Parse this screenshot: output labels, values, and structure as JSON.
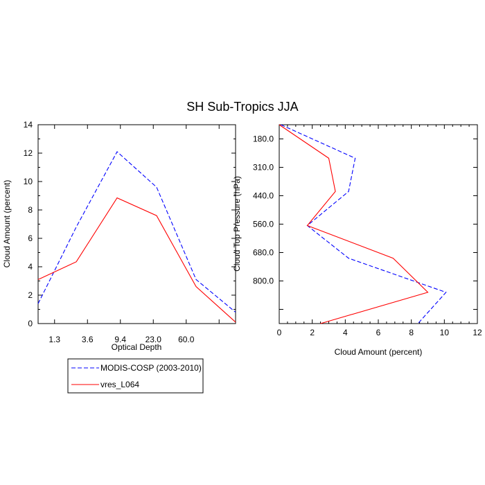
{
  "title": "SH Sub-Tropics JJA",
  "colors": {
    "reference": "#0000ff",
    "model": "#ff0000",
    "axis": "#000000"
  },
  "legend": {
    "entries": [
      {
        "label": "MODIS-COSP (2003-2010)",
        "color": "#0000ff",
        "dash": "dashed"
      },
      {
        "label": "vres_L064",
        "color": "#ff0000",
        "dash": "solid"
      }
    ]
  },
  "chart_data": [
    {
      "type": "line",
      "title": "",
      "xlabel": "Optical Depth",
      "ylabel": "Cloud Amount (percent)",
      "x": [
        0,
        1,
        2,
        3,
        4,
        5,
        6
      ],
      "xlim": [
        0,
        6
      ],
      "xticks": [
        0.5,
        1.5,
        2.5,
        3.5,
        4.5,
        5.5
      ],
      "xtick_labels": [
        "1.3",
        "3.6",
        "9.4",
        "23.0",
        "60.0"
      ],
      "xtick_label_positions": [
        0.5,
        1.5,
        2.5,
        3.5,
        4.5
      ],
      "ylim": [
        0,
        14
      ],
      "yticks": [
        0,
        2,
        4,
        6,
        8,
        10,
        12,
        14
      ],
      "ytick_labels": [
        "0",
        "2",
        "4",
        "6",
        "8",
        "10",
        "12",
        "14"
      ],
      "grid": false,
      "series": [
        {
          "name": "MODIS-COSP (2003-2010)",
          "values": [
            1.4,
            6.8,
            12.1,
            9.6,
            3.1,
            0.8
          ],
          "x": [
            0,
            1.16,
            2.4,
            3.6,
            4.8,
            6.0
          ]
        },
        {
          "name": "vres_L064",
          "values": [
            3.1,
            4.35,
            8.85,
            7.6,
            2.6,
            0.1
          ],
          "x": [
            0,
            1.16,
            2.4,
            3.6,
            4.8,
            6.0
          ]
        }
      ]
    },
    {
      "type": "line",
      "title": "",
      "xlabel": "Cloud Amount (percent)",
      "ylabel": "Cloud Top Pressure (hPa)",
      "xlim": [
        0,
        12
      ],
      "xticks": [
        0,
        2,
        4,
        6,
        8,
        10,
        12
      ],
      "xtick_labels": [
        "0",
        "2",
        "4",
        "6",
        "8",
        "10",
        "12"
      ],
      "ylim": [
        0,
        7
      ],
      "y_orientation": "downward",
      "yticks": [
        0.5,
        1.5,
        2.5,
        3.5,
        4.5,
        5.5,
        6.5
      ],
      "ytick_labels": [
        "180.0",
        "310.0",
        "440.0",
        "560.0",
        "680.0",
        "800.0"
      ],
      "ytick_label_positions": [
        0.5,
        1.5,
        2.5,
        3.5,
        4.5,
        5.5
      ],
      "grid": false,
      "series": [
        {
          "name": "MODIS-COSP (2003-2010)",
          "values": [
            0.0,
            1.18,
            2.35,
            3.55,
            4.7,
            5.9,
            7.0
          ],
          "x": [
            0.1,
            4.6,
            4.2,
            1.7,
            4.2,
            10.1,
            8.4
          ]
        },
        {
          "name": "vres_L064",
          "values": [
            0.0,
            1.18,
            2.35,
            3.55,
            4.7,
            5.9,
            7.0
          ],
          "x": [
            0.0,
            3.0,
            3.4,
            1.7,
            6.9,
            9.0,
            2.5
          ]
        }
      ]
    }
  ]
}
